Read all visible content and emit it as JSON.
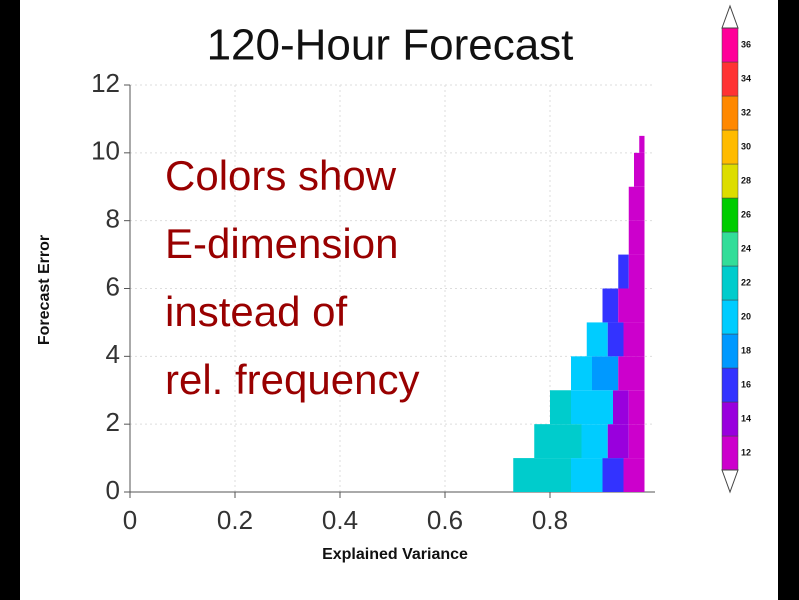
{
  "chart_data": {
    "type": "heatmap",
    "title": "120-Hour Forecast",
    "xlabel": "Explained Variance",
    "ylabel": "Forecast Error",
    "xlim": [
      0,
      1
    ],
    "ylim": [
      0,
      12
    ],
    "xticks": [
      0,
      0.2,
      0.4,
      0.6,
      0.8
    ],
    "yticks": [
      0,
      2,
      4,
      6,
      8,
      10,
      12
    ],
    "grid": true,
    "annotation": [
      "Colors show",
      "E-dimension",
      "instead of",
      "rel. frequency"
    ],
    "colorbar": {
      "ticks": [
        12,
        14,
        16,
        18,
        20,
        22,
        24,
        26,
        28,
        30,
        32,
        34,
        36
      ],
      "colors": [
        "#cc00cc",
        "#9900dd",
        "#3333ff",
        "#0099ff",
        "#00ccff",
        "#00cccc",
        "#33dd99",
        "#00cc00",
        "#dddd00",
        "#ffbb00",
        "#ff8800",
        "#ff3333",
        "#ff0099"
      ]
    },
    "cells": [
      {
        "x": [
          0.73,
          0.84
        ],
        "y": [
          0,
          1
        ],
        "level": 22
      },
      {
        "x": [
          0.84,
          0.9
        ],
        "y": [
          0,
          1
        ],
        "level": 20
      },
      {
        "x": [
          0.9,
          0.94
        ],
        "y": [
          0,
          1
        ],
        "level": 16
      },
      {
        "x": [
          0.94,
          0.98
        ],
        "y": [
          0,
          1
        ],
        "level": 12
      },
      {
        "x": [
          0.77,
          0.86
        ],
        "y": [
          1,
          2
        ],
        "level": 22
      },
      {
        "x": [
          0.86,
          0.91
        ],
        "y": [
          1,
          2
        ],
        "level": 20
      },
      {
        "x": [
          0.91,
          0.95
        ],
        "y": [
          1,
          2
        ],
        "level": 14
      },
      {
        "x": [
          0.95,
          0.98
        ],
        "y": [
          1,
          2
        ],
        "level": 12
      },
      {
        "x": [
          0.8,
          0.84
        ],
        "y": [
          2,
          3
        ],
        "level": 22
      },
      {
        "x": [
          0.84,
          0.92
        ],
        "y": [
          2,
          3
        ],
        "level": 20
      },
      {
        "x": [
          0.92,
          0.95
        ],
        "y": [
          2,
          3
        ],
        "level": 14
      },
      {
        "x": [
          0.95,
          0.98
        ],
        "y": [
          2,
          3
        ],
        "level": 12
      },
      {
        "x": [
          0.84,
          0.88
        ],
        "y": [
          3,
          4
        ],
        "level": 20
      },
      {
        "x": [
          0.88,
          0.93
        ],
        "y": [
          3,
          4
        ],
        "level": 18
      },
      {
        "x": [
          0.93,
          0.98
        ],
        "y": [
          3,
          4
        ],
        "level": 12
      },
      {
        "x": [
          0.87,
          0.91
        ],
        "y": [
          4,
          5
        ],
        "level": 20
      },
      {
        "x": [
          0.91,
          0.94
        ],
        "y": [
          4,
          5
        ],
        "level": 16
      },
      {
        "x": [
          0.94,
          0.98
        ],
        "y": [
          4,
          5
        ],
        "level": 12
      },
      {
        "x": [
          0.9,
          0.93
        ],
        "y": [
          5,
          6
        ],
        "level": 16
      },
      {
        "x": [
          0.93,
          0.98
        ],
        "y": [
          5,
          6
        ],
        "level": 12
      },
      {
        "x": [
          0.93,
          0.95
        ],
        "y": [
          6,
          7
        ],
        "level": 16
      },
      {
        "x": [
          0.95,
          0.98
        ],
        "y": [
          6,
          7
        ],
        "level": 12
      },
      {
        "x": [
          0.95,
          0.98
        ],
        "y": [
          7,
          8
        ],
        "level": 12
      },
      {
        "x": [
          0.95,
          0.98
        ],
        "y": [
          8,
          9
        ],
        "level": 12
      },
      {
        "x": [
          0.96,
          0.98
        ],
        "y": [
          9,
          10
        ],
        "level": 12
      },
      {
        "x": [
          0.97,
          0.98
        ],
        "y": [
          10,
          10.5
        ],
        "level": 12
      }
    ]
  }
}
